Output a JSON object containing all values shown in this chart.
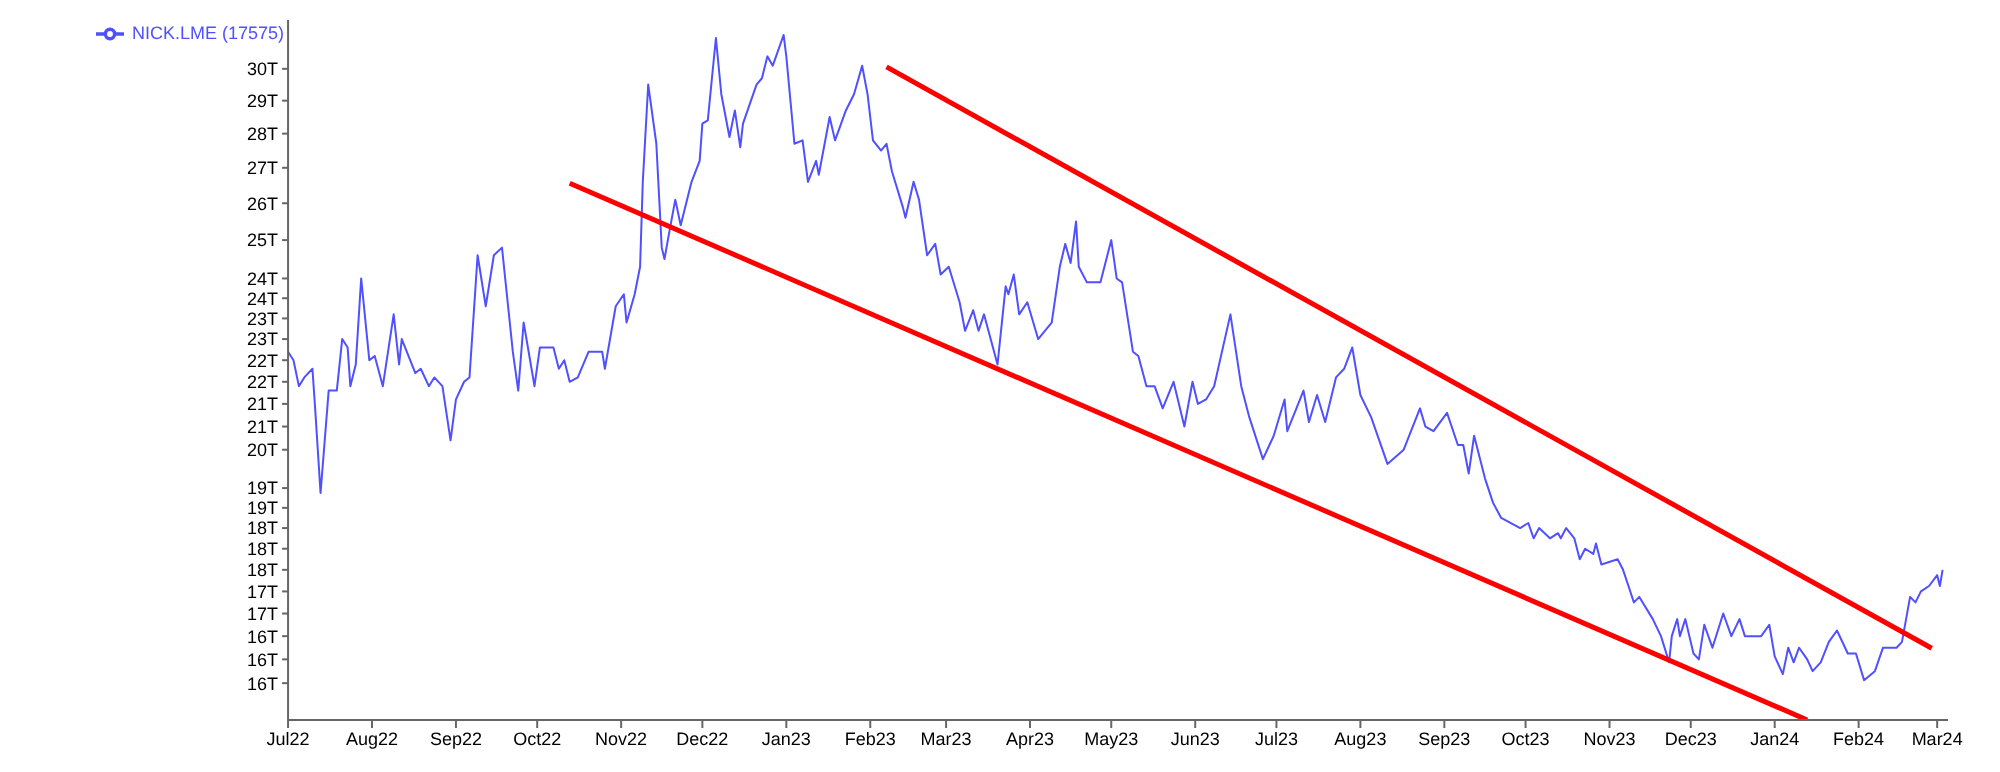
{
  "chart_data": {
    "type": "line",
    "legend": "top left",
    "xlim": [
      "2022-07-01",
      "2024-03-05"
    ],
    "xticks": [
      {
        "value": "2022-07-01",
        "label": "Jul22"
      },
      {
        "value": "2022-08-01",
        "label": "Aug22"
      },
      {
        "value": "2022-09-01",
        "label": "Sep22"
      },
      {
        "value": "2022-10-01",
        "label": "Oct22"
      },
      {
        "value": "2022-11-01",
        "label": "Nov22"
      },
      {
        "value": "2022-12-01",
        "label": "Dec22"
      },
      {
        "value": "2023-01-01",
        "label": "Jan23"
      },
      {
        "value": "2023-02-01",
        "label": "Feb23"
      },
      {
        "value": "2023-03-01",
        "label": "Mar23"
      },
      {
        "value": "2023-04-01",
        "label": "Apr23"
      },
      {
        "value": "2023-05-01",
        "label": "May23"
      },
      {
        "value": "2023-06-01",
        "label": "Jun23"
      },
      {
        "value": "2023-07-01",
        "label": "Jul23"
      },
      {
        "value": "2023-08-01",
        "label": "Aug23"
      },
      {
        "value": "2023-09-01",
        "label": "Sep23"
      },
      {
        "value": "2023-10-01",
        "label": "Oct23"
      },
      {
        "value": "2023-11-01",
        "label": "Nov23"
      },
      {
        "value": "2023-12-01",
        "label": "Dec23"
      },
      {
        "value": "2024-01-01",
        "label": "Jan24"
      },
      {
        "value": "2024-02-01",
        "label": "Feb24"
      },
      {
        "value": "2024-03-01",
        "label": "Mar24"
      }
    ],
    "log": "y",
    "ylim": [
      15,
      31.6
    ],
    "yticks": [
      {
        "value": 30,
        "label": "30T"
      },
      {
        "value": 29,
        "label": "29T"
      },
      {
        "value": 28,
        "label": "28T"
      },
      {
        "value": 27,
        "label": "27T"
      },
      {
        "value": 26,
        "label": "26T"
      },
      {
        "value": 25,
        "label": "25T"
      },
      {
        "value": 24,
        "label": "24T"
      },
      {
        "value": 23.5,
        "label": "24T"
      },
      {
        "value": 23,
        "label": "23T"
      },
      {
        "value": 22.5,
        "label": "23T"
      },
      {
        "value": 22,
        "label": "22T"
      },
      {
        "value": 21.5,
        "label": "22T"
      },
      {
        "value": 21,
        "label": "21T"
      },
      {
        "value": 20.5,
        "label": "21T"
      },
      {
        "value": 20,
        "label": "20T"
      },
      {
        "value": 19.2,
        "label": "19T"
      },
      {
        "value": 18.8,
        "label": "19T"
      },
      {
        "value": 18.4,
        "label": "18T"
      },
      {
        "value": 18,
        "label": "18T"
      },
      {
        "value": 17.6,
        "label": "18T"
      },
      {
        "value": 17.2,
        "label": "17T"
      },
      {
        "value": 16.8,
        "label": "17T"
      },
      {
        "value": 16.4,
        "label": "16T"
      },
      {
        "value": 16,
        "label": "16T"
      },
      {
        "value": 15.6,
        "label": "16T"
      }
    ],
    "series": [
      {
        "name": "NICK.LME (17575)",
        "color": "#5050ff",
        "x": [
          "2022-07-01",
          "2022-07-03",
          "2022-07-05",
          "2022-07-07",
          "2022-07-10",
          "2022-07-11",
          "2022-07-13",
          "2022-07-16",
          "2022-07-19",
          "2022-07-21",
          "2022-07-23",
          "2022-07-24",
          "2022-07-26",
          "2022-07-28",
          "2022-07-31",
          "2022-08-02",
          "2022-08-05",
          "2022-08-09",
          "2022-08-11",
          "2022-08-12",
          "2022-08-17",
          "2022-08-19",
          "2022-08-22",
          "2022-08-24",
          "2022-08-27",
          "2022-08-30",
          "2022-09-01",
          "2022-09-04",
          "2022-09-06",
          "2022-09-09",
          "2022-09-12",
          "2022-09-15",
          "2022-09-18",
          "2022-09-22",
          "2022-09-24",
          "2022-09-26",
          "2022-09-30",
          "2022-10-02",
          "2022-10-07",
          "2022-10-09",
          "2022-10-11",
          "2022-10-13",
          "2022-10-16",
          "2022-10-20",
          "2022-10-25",
          "2022-10-26",
          "2022-10-30",
          "2022-11-02",
          "2022-11-03",
          "2022-11-06",
          "2022-11-08",
          "2022-11-09",
          "2022-11-11",
          "2022-11-14",
          "2022-11-16",
          "2022-11-17",
          "2022-11-19",
          "2022-11-21",
          "2022-11-23",
          "2022-11-27",
          "2022-11-30",
          "2022-12-01",
          "2022-12-03",
          "2022-12-06",
          "2022-12-08",
          "2022-12-11",
          "2022-12-13",
          "2022-12-15",
          "2022-12-16",
          "2022-12-21",
          "2022-12-23",
          "2022-12-25",
          "2022-12-27",
          "2022-12-31",
          "2023-01-01",
          "2023-01-04",
          "2023-01-07",
          "2023-01-09",
          "2023-01-12",
          "2023-01-13",
          "2023-01-17",
          "2023-01-19",
          "2023-01-23",
          "2023-01-26",
          "2023-01-29",
          "2023-01-31",
          "2023-02-02",
          "2023-02-05",
          "2023-02-07",
          "2023-02-09",
          "2023-02-13",
          "2023-02-14",
          "2023-02-17",
          "2023-02-19",
          "2023-02-22",
          "2023-02-25",
          "2023-02-27",
          "2023-03-02",
          "2023-03-06",
          "2023-03-08",
          "2023-03-11",
          "2023-03-13",
          "2023-03-15",
          "2023-03-20",
          "2023-03-23",
          "2023-03-24",
          "2023-03-26",
          "2023-03-28",
          "2023-03-31",
          "2023-04-04",
          "2023-04-09",
          "2023-04-12",
          "2023-04-14",
          "2023-04-16",
          "2023-04-18",
          "2023-04-19",
          "2023-04-22",
          "2023-04-27",
          "2023-05-01",
          "2023-05-03",
          "2023-05-05",
          "2023-05-09",
          "2023-05-11",
          "2023-05-14",
          "2023-05-17",
          "2023-05-20",
          "2023-05-24",
          "2023-05-28",
          "2023-05-31",
          "2023-06-02",
          "2023-06-05",
          "2023-06-08",
          "2023-06-14",
          "2023-06-18",
          "2023-06-21",
          "2023-06-26",
          "2023-06-30",
          "2023-07-04",
          "2023-07-05",
          "2023-07-11",
          "2023-07-13",
          "2023-07-16",
          "2023-07-19",
          "2023-07-23",
          "2023-07-26",
          "2023-07-29",
          "2023-08-01",
          "2023-08-05",
          "2023-08-11",
          "2023-08-17",
          "2023-08-23",
          "2023-08-25",
          "2023-08-28",
          "2023-09-02",
          "2023-09-06",
          "2023-09-08",
          "2023-09-10",
          "2023-09-12",
          "2023-09-16",
          "2023-09-19",
          "2023-09-22",
          "2023-09-29",
          "2023-10-02",
          "2023-10-04",
          "2023-10-06",
          "2023-10-10",
          "2023-10-13",
          "2023-10-14",
          "2023-10-16",
          "2023-10-19",
          "2023-10-21",
          "2023-10-23",
          "2023-10-26",
          "2023-10-27",
          "2023-10-29",
          "2023-11-04",
          "2023-11-06",
          "2023-11-08",
          "2023-11-10",
          "2023-11-12",
          "2023-11-17",
          "2023-11-20",
          "2023-11-23",
          "2023-11-24",
          "2023-11-26",
          "2023-11-27",
          "2023-11-29",
          "2023-12-02",
          "2023-12-04",
          "2023-12-06",
          "2023-12-09",
          "2023-12-13",
          "2023-12-16",
          "2023-12-19",
          "2023-12-21",
          "2023-12-27",
          "2023-12-30",
          "2024-01-01",
          "2024-01-04",
          "2024-01-06",
          "2024-01-08",
          "2024-01-10",
          "2024-01-13",
          "2024-01-15",
          "2024-01-18",
          "2024-01-21",
          "2024-01-24",
          "2024-01-28",
          "2024-01-31",
          "2024-02-03",
          "2024-02-07",
          "2024-02-10",
          "2024-02-13",
          "2024-02-15",
          "2024-02-17",
          "2024-02-20",
          "2024-02-22",
          "2024-02-24",
          "2024-02-27",
          "2024-03-01",
          "2024-03-02",
          "2024-03-03"
        ],
        "values": [
          22.2,
          22.0,
          21.4,
          21.6,
          21.8,
          20.9,
          19.1,
          21.3,
          21.3,
          22.5,
          22.3,
          21.4,
          21.9,
          24.0,
          22.0,
          22.1,
          21.4,
          23.1,
          21.9,
          22.5,
          21.7,
          21.8,
          21.4,
          21.6,
          21.4,
          20.2,
          21.1,
          21.5,
          21.6,
          24.6,
          23.3,
          24.6,
          24.8,
          22.2,
          21.3,
          22.9,
          21.4,
          22.3,
          22.3,
          21.8,
          22.0,
          21.5,
          21.6,
          22.2,
          22.2,
          21.8,
          23.3,
          23.6,
          22.9,
          23.6,
          24.3,
          26.6,
          29.5,
          27.7,
          24.8,
          24.5,
          25.3,
          26.1,
          25.4,
          26.6,
          27.2,
          28.3,
          28.4,
          31.0,
          29.2,
          27.9,
          28.7,
          27.6,
          28.3,
          29.5,
          29.7,
          30.4,
          30.1,
          31.1,
          30.4,
          27.7,
          27.8,
          26.6,
          27.2,
          26.8,
          28.5,
          27.8,
          28.7,
          29.2,
          30.1,
          29.2,
          27.8,
          27.5,
          27.7,
          26.9,
          25.9,
          25.6,
          26.6,
          26.1,
          24.6,
          24.9,
          24.1,
          24.3,
          23.4,
          22.7,
          23.2,
          22.7,
          23.1,
          21.9,
          23.8,
          23.6,
          24.1,
          23.1,
          23.4,
          22.5,
          22.9,
          24.3,
          24.9,
          24.4,
          25.5,
          24.3,
          23.9,
          23.9,
          25.0,
          24.0,
          23.9,
          22.2,
          22.1,
          21.4,
          21.4,
          20.9,
          21.5,
          20.5,
          21.5,
          21.0,
          21.1,
          21.4,
          23.1,
          21.4,
          20.7,
          19.8,
          20.3,
          21.1,
          20.4,
          21.3,
          20.6,
          21.2,
          20.6,
          21.6,
          21.8,
          22.3,
          21.2,
          20.7,
          19.7,
          20.0,
          20.9,
          20.5,
          20.4,
          20.8,
          20.1,
          20.1,
          19.5,
          20.3,
          19.4,
          18.9,
          18.6,
          18.4,
          18.5,
          18.2,
          18.4,
          18.2,
          18.3,
          18.2,
          18.4,
          18.2,
          17.8,
          18.0,
          17.9,
          18.1,
          17.7,
          17.8,
          17.6,
          17.3,
          17.0,
          17.1,
          16.7,
          16.4,
          15.95,
          16.4,
          16.7,
          16.4,
          16.7,
          16.1,
          16.0,
          16.6,
          16.2,
          16.8,
          16.4,
          16.7,
          16.4,
          16.4,
          16.6,
          16.05,
          15.75,
          16.2,
          15.95,
          16.2,
          16.0,
          15.8,
          15.95,
          16.3,
          16.5,
          16.1,
          16.1,
          15.65,
          15.8,
          16.2,
          16.2,
          16.2,
          16.3,
          17.1,
          17.0,
          17.2,
          17.3,
          17.5,
          17.3,
          17.6
        ]
      },
      {
        "type": "line",
        "color": "#ff0000",
        "x": [
          "2022-10-13",
          "2024-01-13"
        ],
        "values": [
          26.56,
          15.0
        ]
      },
      {
        "type": "line",
        "color": "#ff0000",
        "x": [
          "2023-02-07",
          "2024-02-28"
        ],
        "values": [
          30.06,
          16.19
        ]
      }
    ]
  }
}
